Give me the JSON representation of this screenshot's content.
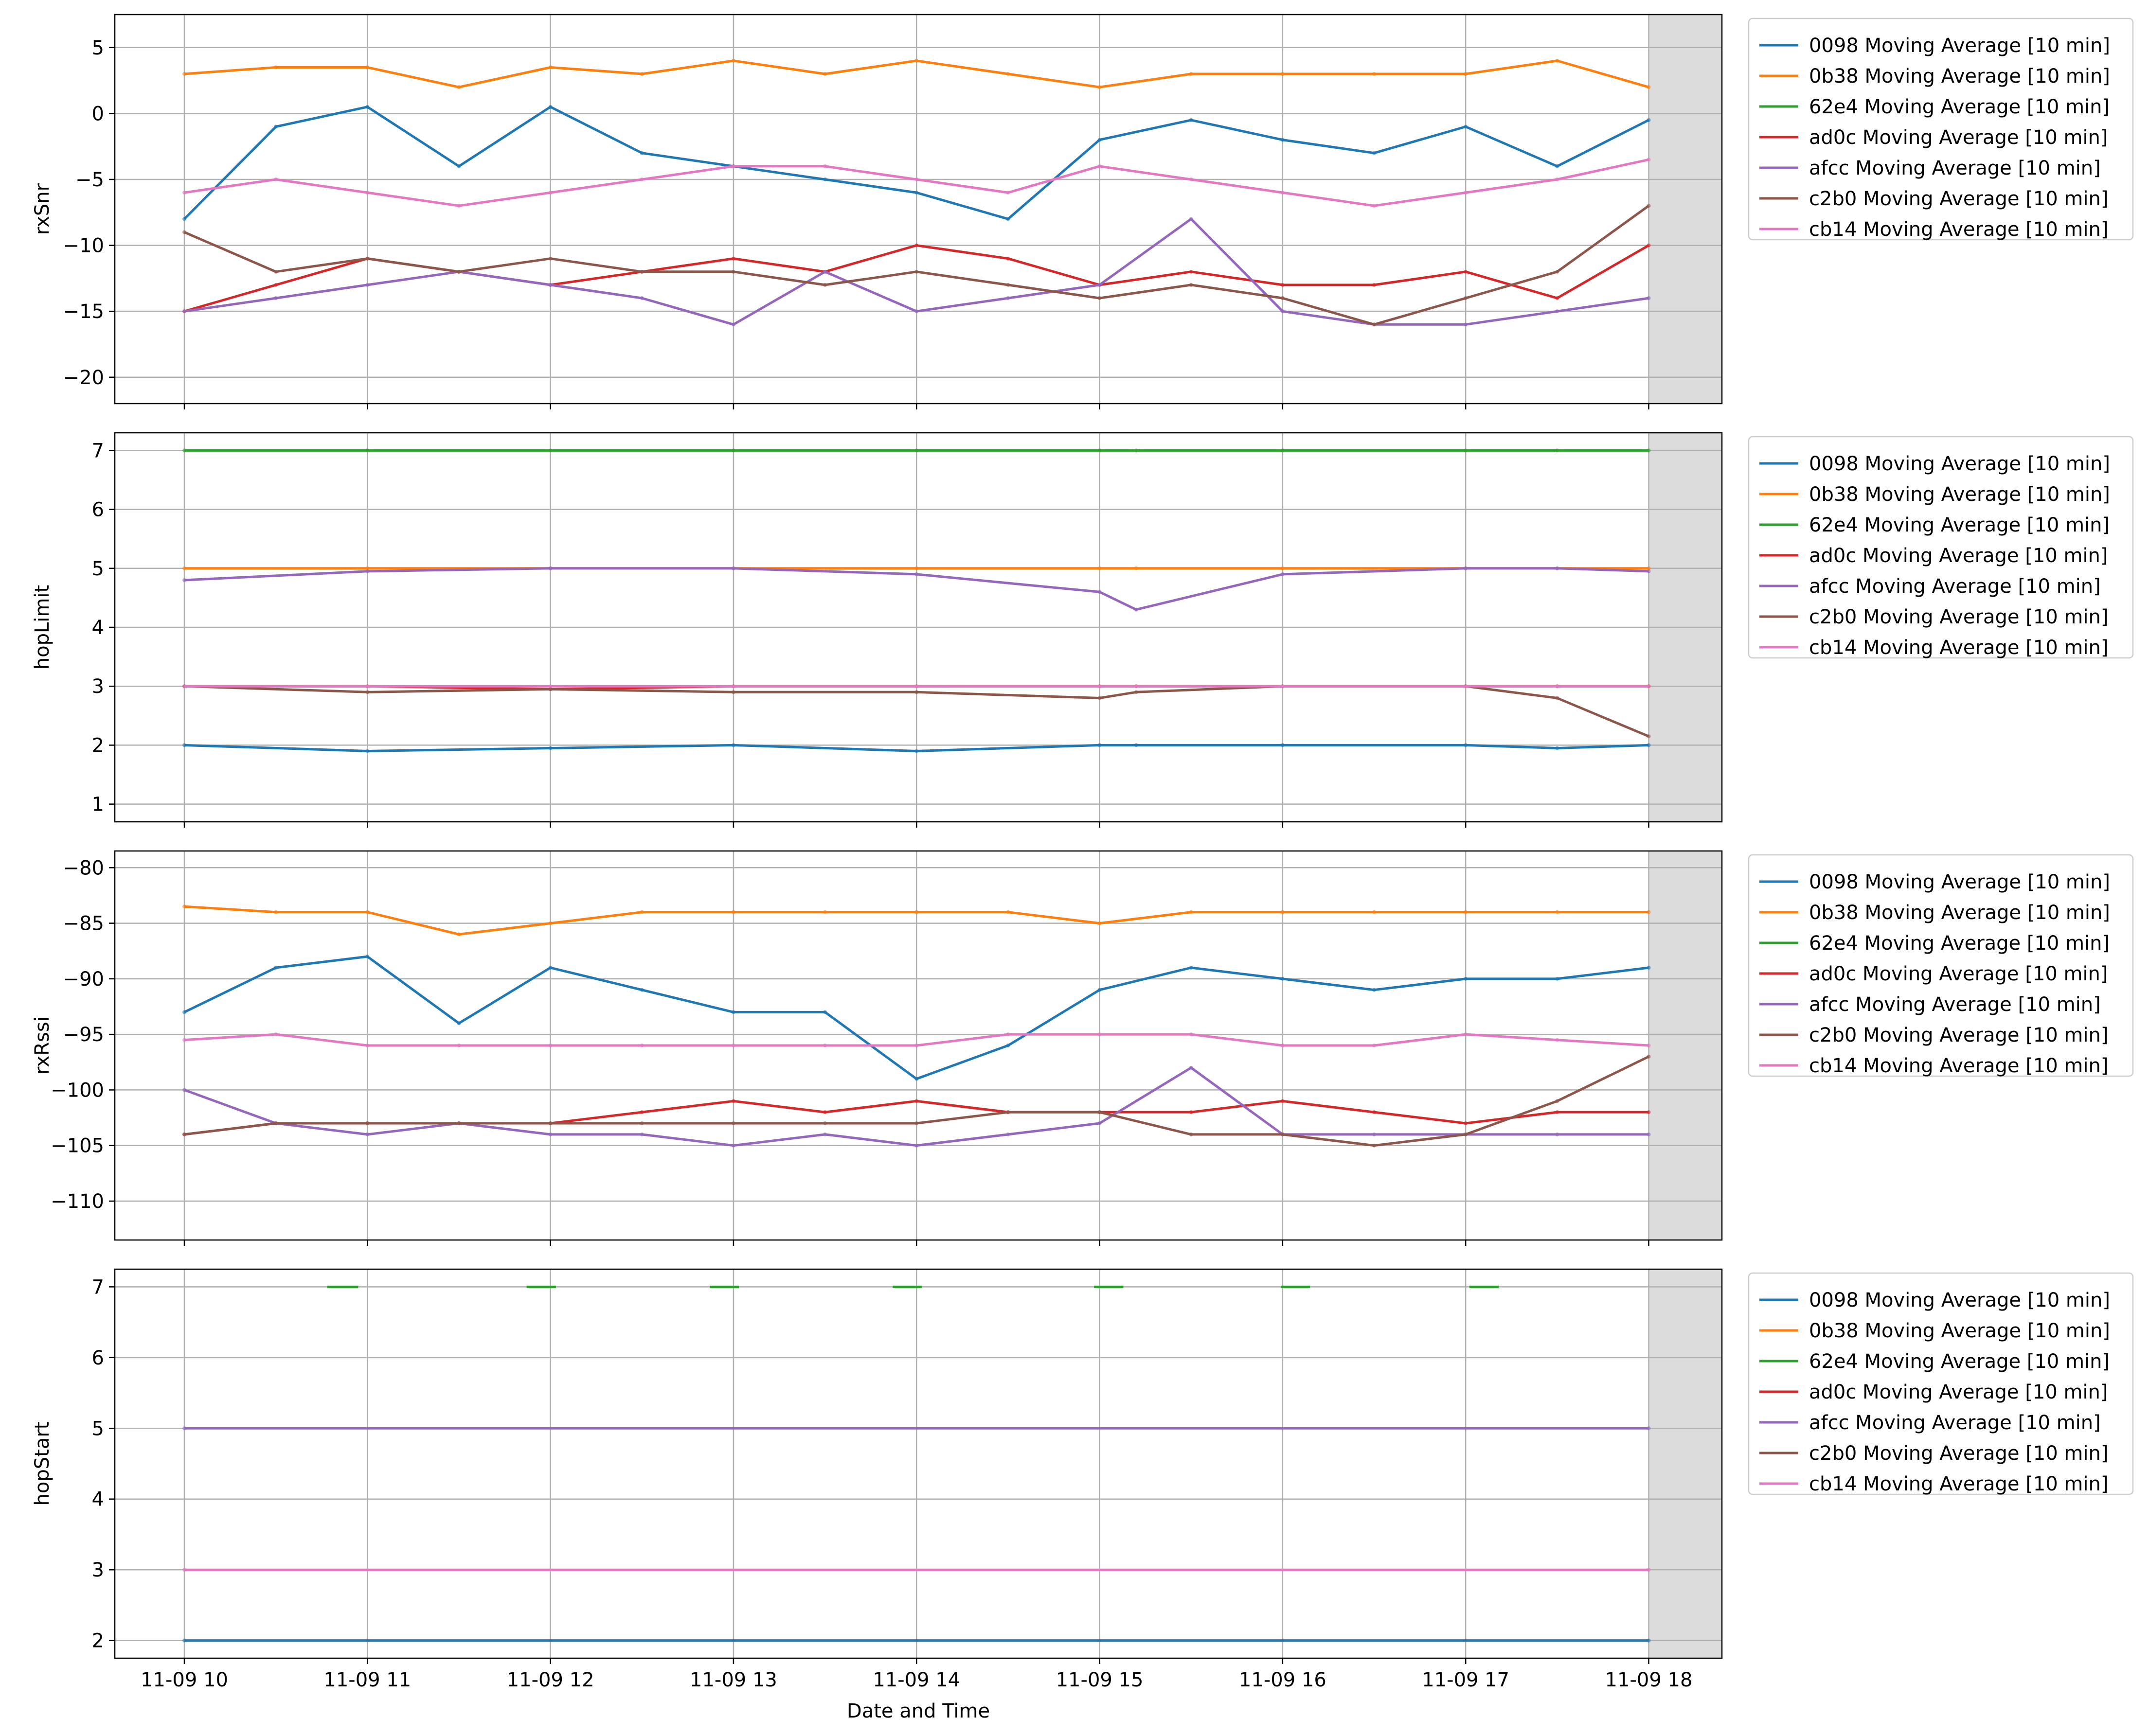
{
  "figure": {
    "xlabel": "Date and Time",
    "x_tick_labels": [
      "11-09 10",
      "11-09 11",
      "11-09 12",
      "11-09 13",
      "11-09 14",
      "11-09 15",
      "11-09 16",
      "11-09 17",
      "11-09 18"
    ],
    "x_range_hours": [
      9.62,
      18.4
    ],
    "shaded_region_hours": [
      18.0,
      18.4
    ],
    "legend_location": "outside-right"
  },
  "chart_data": [
    {
      "type": "line",
      "ylabel": "rxSnr",
      "ylim": [
        -22,
        7.5
      ],
      "yticks": [
        -20,
        -15,
        -10,
        -5,
        0,
        5
      ],
      "ytick_labels": [
        "−20",
        "−15",
        "−10",
        "−5",
        "0",
        "5"
      ],
      "x_hours": [
        10,
        10.5,
        11,
        11.5,
        12,
        12.5,
        13,
        13.5,
        14,
        14.5,
        15,
        15.5,
        16,
        16.5,
        17,
        17.5,
        18
      ],
      "series": [
        {
          "name": "0098 Moving Average [10 min]",
          "color": "#1f77b4",
          "values": [
            -8,
            -1,
            0.5,
            -4,
            0.5,
            -3,
            -4,
            -5,
            -6,
            -8,
            -2,
            -0.5,
            -2,
            -3,
            -1,
            -4,
            -0.5
          ]
        },
        {
          "name": "0b38 Moving Average [10 min]",
          "color": "#ff7f0e",
          "values": [
            3,
            3.5,
            3.5,
            2,
            3.5,
            3,
            4,
            3,
            4,
            3,
            2,
            3,
            3,
            3,
            3,
            4,
            2
          ]
        },
        {
          "name": "ad0c Moving Average [10 min]",
          "color": "#d62728",
          "values": [
            -15,
            -13,
            -11,
            -12,
            -13,
            -12,
            -11,
            -12,
            -10,
            -11,
            -13,
            -12,
            -13,
            -13,
            -12,
            -14,
            -10
          ]
        },
        {
          "name": "afcc Moving Average [10 min]",
          "color": "#9467bd",
          "values": [
            -15,
            -14,
            -13,
            -12,
            -13,
            -14,
            -16,
            -12,
            -15,
            -14,
            -13,
            -8,
            -15,
            -16,
            -16,
            -15,
            -14
          ]
        },
        {
          "name": "c2b0 Moving Average [10 min]",
          "color": "#8c564b",
          "values": [
            -9,
            -12,
            -11,
            -12,
            -11,
            -12,
            -12,
            -13,
            -12,
            -13,
            -14,
            -13,
            -14,
            -16,
            -14,
            -12,
            -7
          ]
        },
        {
          "name": "cb14 Moving Average [10 min]",
          "color": "#e377c2",
          "values": [
            -6,
            -5,
            -6,
            -7,
            -6,
            -5,
            -4,
            -4,
            -5,
            -6,
            -4,
            -5,
            -6,
            -7,
            -6,
            -5,
            -3.5
          ]
        }
      ],
      "legend": [
        "0098 Moving Average [10 min]",
        "0b38 Moving Average [10 min]",
        "62e4 Moving Average [10 min]",
        "ad0c Moving Average [10 min]",
        "afcc Moving Average [10 min]",
        "c2b0 Moving Average [10 min]",
        "cb14 Moving Average [10 min]"
      ]
    },
    {
      "type": "line",
      "ylabel": "hopLimit",
      "ylim": [
        0.7,
        7.3
      ],
      "yticks": [
        1,
        2,
        3,
        4,
        5,
        6,
        7
      ],
      "ytick_labels": [
        "1",
        "2",
        "3",
        "4",
        "5",
        "6",
        "7"
      ],
      "x_hours": [
        10,
        11,
        12,
        13,
        14,
        15,
        15.2,
        16,
        17,
        17.5,
        18
      ],
      "series": [
        {
          "name": "0098 Moving Average [10 min]",
          "color": "#1f77b4",
          "values": [
            2,
            1.9,
            1.95,
            2,
            1.9,
            2,
            2,
            2,
            2,
            1.95,
            2
          ]
        },
        {
          "name": "0b38 Moving Average [10 min]",
          "color": "#ff7f0e",
          "values": [
            5,
            5,
            5,
            5,
            5,
            5,
            5,
            5,
            5,
            5,
            5
          ]
        },
        {
          "name": "62e4 Moving Average [10 min]",
          "color": "#2ca02c",
          "values": [
            7,
            7,
            7,
            7,
            7,
            7,
            7,
            7,
            7,
            7,
            7
          ]
        },
        {
          "name": "ad0c Moving Average [10 min]",
          "color": "#d62728",
          "values": [
            3,
            3,
            2.95,
            3,
            3,
            3,
            3,
            3,
            3,
            3,
            3
          ]
        },
        {
          "name": "afcc Moving Average [10 min]",
          "color": "#9467bd",
          "values": [
            4.8,
            4.95,
            5,
            5,
            4.9,
            4.6,
            4.3,
            4.9,
            5,
            5,
            4.95
          ]
        },
        {
          "name": "c2b0 Moving Average [10 min]",
          "color": "#8c564b",
          "values": [
            3,
            2.9,
            2.95,
            2.9,
            2.9,
            2.8,
            2.9,
            3,
            3,
            2.8,
            2.15
          ]
        },
        {
          "name": "cb14 Moving Average [10 min]",
          "color": "#e377c2",
          "values": [
            3,
            3,
            3,
            3,
            3,
            3,
            3,
            3,
            3,
            3,
            3
          ]
        }
      ],
      "legend": [
        "0098 Moving Average [10 min]",
        "0b38 Moving Average [10 min]",
        "62e4 Moving Average [10 min]",
        "ad0c Moving Average [10 min]",
        "afcc Moving Average [10 min]",
        "c2b0 Moving Average [10 min]",
        "cb14 Moving Average [10 min]"
      ]
    },
    {
      "type": "line",
      "ylabel": "rxRssi",
      "ylim": [
        -113.5,
        -78.5
      ],
      "yticks": [
        -110,
        -105,
        -100,
        -95,
        -90,
        -85,
        -80
      ],
      "ytick_labels": [
        "−110",
        "−105",
        "−100",
        "−95",
        "−90",
        "−85",
        "−80"
      ],
      "x_hours": [
        10,
        10.5,
        11,
        11.5,
        12,
        12.5,
        13,
        13.5,
        14,
        14.5,
        15,
        15.5,
        16,
        16.5,
        17,
        17.5,
        18
      ],
      "series": [
        {
          "name": "0098 Moving Average [10 min]",
          "color": "#1f77b4",
          "values": [
            -93,
            -89,
            -88,
            -94,
            -89,
            -91,
            -93,
            -93,
            -99,
            -96,
            -91,
            -89,
            -90,
            -91,
            -90,
            -90,
            -89
          ]
        },
        {
          "name": "0b38 Moving Average [10 min]",
          "color": "#ff7f0e",
          "values": [
            -83.5,
            -84,
            -84,
            -86,
            -85,
            -84,
            -84,
            -84,
            -84,
            -84,
            -85,
            -84,
            -84,
            -84,
            -84,
            -84,
            -84
          ]
        },
        {
          "name": "ad0c Moving Average [10 min]",
          "color": "#d62728",
          "values": [
            -104,
            -103,
            -103,
            -103,
            -103,
            -102,
            -101,
            -102,
            -101,
            -102,
            -102,
            -102,
            -101,
            -102,
            -103,
            -102,
            -102
          ]
        },
        {
          "name": "afcc Moving Average [10 min]",
          "color": "#9467bd",
          "values": [
            -100,
            -103,
            -104,
            -103,
            -104,
            -104,
            -105,
            -104,
            -105,
            -104,
            -103,
            -98,
            -104,
            -104,
            -104,
            -104,
            -104
          ]
        },
        {
          "name": "c2b0 Moving Average [10 min]",
          "color": "#8c564b",
          "values": [
            -104,
            -103,
            -103,
            -103,
            -103,
            -103,
            -103,
            -103,
            -103,
            -102,
            -102,
            -104,
            -104,
            -105,
            -104,
            -101,
            -97
          ]
        },
        {
          "name": "cb14 Moving Average [10 min]",
          "color": "#e377c2",
          "values": [
            -95.5,
            -95,
            -96,
            -96,
            -96,
            -96,
            -96,
            -96,
            -96,
            -95,
            -95,
            -95,
            -96,
            -96,
            -95,
            -95.5,
            -96
          ]
        }
      ],
      "legend": [
        "0098 Moving Average [10 min]",
        "0b38 Moving Average [10 min]",
        "62e4 Moving Average [10 min]",
        "ad0c Moving Average [10 min]",
        "afcc Moving Average [10 min]",
        "c2b0 Moving Average [10 min]",
        "cb14 Moving Average [10 min]"
      ]
    },
    {
      "type": "line",
      "ylabel": "hopStart",
      "ylim": [
        1.75,
        7.25
      ],
      "yticks": [
        2,
        3,
        4,
        5,
        6,
        7
      ],
      "ytick_labels": [
        "2",
        "3",
        "4",
        "5",
        "6",
        "7"
      ],
      "x_hours": [
        10,
        18
      ],
      "series": [
        {
          "name": "0098 Moving Average [10 min]",
          "color": "#1f77b4",
          "values": [
            2,
            2
          ]
        },
        {
          "name": "cb14 Moving Average [10 min]",
          "color": "#e377c2",
          "values": [
            3,
            3
          ]
        },
        {
          "name": "afcc Moving Average [10 min]",
          "color": "#9467bd",
          "values": [
            5,
            5
          ]
        }
      ],
      "segments": [
        {
          "name": "62e4 Moving Average [10 min]",
          "color": "#2ca02c",
          "value": 7,
          "x_hours": [
            [
              10.78,
              10.95
            ],
            [
              11.87,
              12.03
            ],
            [
              12.87,
              13.03
            ],
            [
              13.87,
              14.03
            ],
            [
              14.97,
              15.13
            ],
            [
              15.99,
              16.15
            ],
            [
              17.02,
              17.18
            ]
          ]
        }
      ],
      "legend": [
        "0098 Moving Average [10 min]",
        "0b38 Moving Average [10 min]",
        "62e4 Moving Average [10 min]",
        "ad0c Moving Average [10 min]",
        "afcc Moving Average [10 min]",
        "c2b0 Moving Average [10 min]",
        "cb14 Moving Average [10 min]"
      ]
    }
  ],
  "legend_colors": [
    "#1f77b4",
    "#ff7f0e",
    "#2ca02c",
    "#d62728",
    "#9467bd",
    "#8c564b",
    "#e377c2"
  ]
}
